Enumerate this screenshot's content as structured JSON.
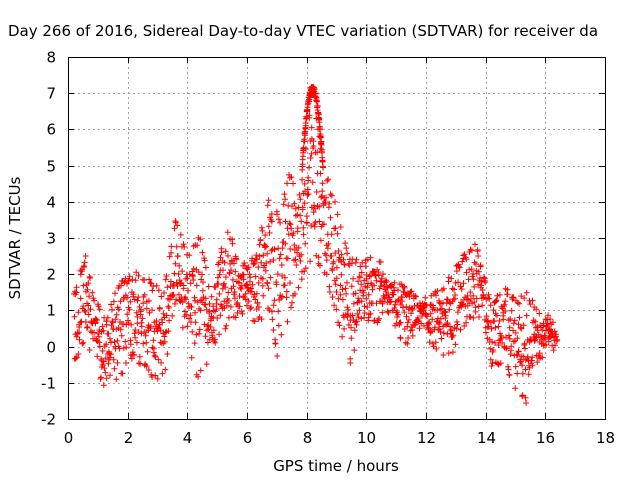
{
  "chart_data": {
    "type": "scatter",
    "title": "Day 266 of 2016, Sidereal Day-to-day VTEC variation (SDTVAR) for receiver da",
    "xlabel": "GPS time / hours",
    "ylabel": "SDTVAR / TECUs",
    "xlim": [
      0,
      18
    ],
    "ylim": [
      -2,
      8
    ],
    "xticks": [
      0,
      2,
      4,
      6,
      8,
      10,
      12,
      14,
      16,
      18
    ],
    "yticks": [
      -2,
      -1,
      0,
      1,
      2,
      3,
      4,
      5,
      6,
      7,
      8
    ],
    "grid": true,
    "marker": "+",
    "colors": {
      "series": "#ff0000"
    },
    "series": [
      {
        "name": "SDTVAR",
        "envelope": [
          {
            "x": 0.2,
            "upper": 1.5,
            "lower": -0.5
          },
          {
            "x": 0.6,
            "upper": 2.6,
            "lower": 0.0
          },
          {
            "x": 0.9,
            "upper": 1.3,
            "lower": -0.5
          },
          {
            "x": 1.3,
            "upper": 0.8,
            "lower": -1.4
          },
          {
            "x": 1.7,
            "upper": 1.8,
            "lower": -1.0
          },
          {
            "x": 2.2,
            "upper": 2.1,
            "lower": -0.3
          },
          {
            "x": 2.7,
            "upper": 1.9,
            "lower": -0.8
          },
          {
            "x": 3.2,
            "upper": 1.5,
            "lower": -1.0
          },
          {
            "x": 3.6,
            "upper": 3.5,
            "lower": 1.2
          },
          {
            "x": 4.0,
            "upper": 2.6,
            "lower": 0.0
          },
          {
            "x": 4.4,
            "upper": 3.1,
            "lower": -1.0
          },
          {
            "x": 4.8,
            "upper": 1.5,
            "lower": -0.2
          },
          {
            "x": 5.3,
            "upper": 3.4,
            "lower": 0.5
          },
          {
            "x": 5.8,
            "upper": 2.3,
            "lower": 0.8
          },
          {
            "x": 6.3,
            "upper": 2.5,
            "lower": 0.5
          },
          {
            "x": 6.8,
            "upper": 4.6,
            "lower": 1.0
          },
          {
            "x": 7.1,
            "upper": 3.5,
            "lower": -1.0
          },
          {
            "x": 7.4,
            "upper": 4.9,
            "lower": 0.8
          },
          {
            "x": 7.8,
            "upper": 4.3,
            "lower": 1.8
          },
          {
            "x": 8.2,
            "upper": 7.2,
            "lower": 2.5
          },
          {
            "x": 8.6,
            "upper": 5.0,
            "lower": 2.0
          },
          {
            "x": 9.0,
            "upper": 3.9,
            "lower": 0.8
          },
          {
            "x": 9.4,
            "upper": 2.5,
            "lower": -0.7
          },
          {
            "x": 9.9,
            "upper": 2.4,
            "lower": 0.8
          },
          {
            "x": 10.3,
            "upper": 2.6,
            "lower": 0.6
          },
          {
            "x": 10.8,
            "upper": 1.9,
            "lower": 0.9
          },
          {
            "x": 11.3,
            "upper": 1.7,
            "lower": -0.1
          },
          {
            "x": 11.8,
            "upper": 1.3,
            "lower": 0.5
          },
          {
            "x": 12.3,
            "upper": 1.5,
            "lower": -0.1
          },
          {
            "x": 12.8,
            "upper": 2.0,
            "lower": -0.4
          },
          {
            "x": 13.3,
            "upper": 2.6,
            "lower": 0.5
          },
          {
            "x": 13.7,
            "upper": 2.9,
            "lower": 0.9
          },
          {
            "x": 14.2,
            "upper": 1.1,
            "lower": -0.6
          },
          {
            "x": 14.6,
            "upper": 1.8,
            "lower": -0.5
          },
          {
            "x": 15.0,
            "upper": 1.4,
            "lower": -1.3
          },
          {
            "x": 15.4,
            "upper": 1.5,
            "lower": -1.6
          },
          {
            "x": 15.8,
            "upper": 1.0,
            "lower": -0.4
          },
          {
            "x": 16.2,
            "upper": 0.9,
            "lower": -0.2
          },
          {
            "x": 16.4,
            "upper": 0.5,
            "lower": -0.1
          }
        ],
        "curve_peak": {
          "x": 8.2,
          "y": 7.1
        }
      }
    ]
  }
}
